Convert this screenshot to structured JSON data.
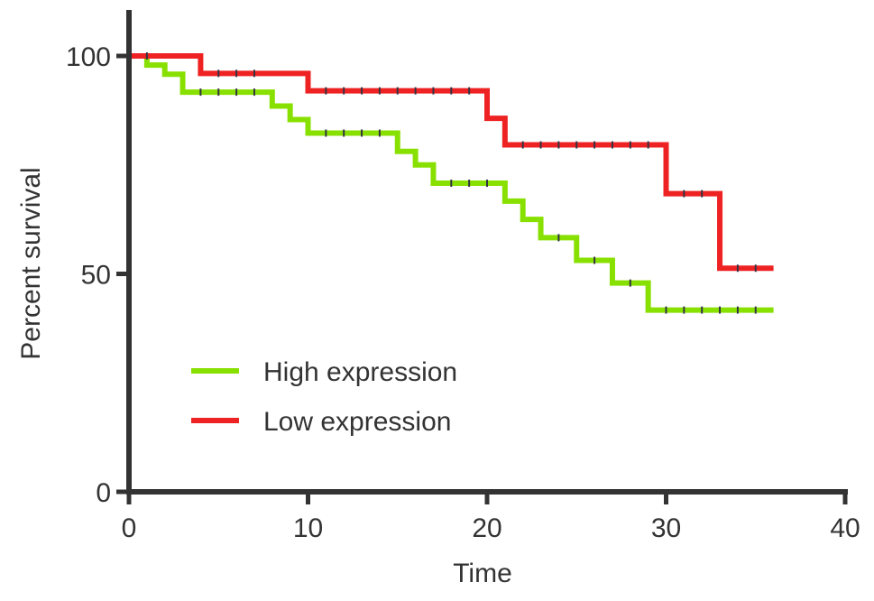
{
  "chart_data": {
    "type": "line",
    "step": true,
    "title": "",
    "xlabel": "Time",
    "ylabel": "Percent survival",
    "xlim": [
      0,
      40
    ],
    "ylim": [
      0,
      100
    ],
    "xticks": [
      0,
      10,
      20,
      30,
      40
    ],
    "yticks": [
      0,
      50,
      100
    ],
    "grid": false,
    "legend_position": "lower-left",
    "series": [
      {
        "name": "High expression",
        "color": "#88e000",
        "x": [
          0,
          1,
          2,
          3,
          8,
          9,
          10,
          15,
          16,
          17,
          21,
          22,
          23,
          25,
          27,
          29,
          36
        ],
        "y": [
          100,
          97.9,
          95.8,
          91.7,
          88.5,
          85.4,
          82.3,
          78.1,
          75,
          70.8,
          66.7,
          62.5,
          58.3,
          53.1,
          47.9,
          41.7,
          41.7
        ],
        "censored": {
          "x": [
            4,
            5,
            6,
            7,
            11,
            12,
            13,
            14,
            18,
            19,
            20,
            24,
            26,
            28,
            30,
            31,
            32,
            33,
            34,
            35
          ],
          "y": [
            91.7,
            91.7,
            91.7,
            91.7,
            82.3,
            82.3,
            82.3,
            82.3,
            70.8,
            70.8,
            70.8,
            58.3,
            53.1,
            47.9,
            41.7,
            41.7,
            41.7,
            41.7,
            41.7,
            41.7
          ]
        }
      },
      {
        "name": "Low expression",
        "color": "#ee2222",
        "x": [
          0,
          4,
          10,
          20,
          21,
          30,
          33,
          36
        ],
        "y": [
          100,
          96,
          92,
          85.7,
          79.6,
          68.4,
          51.3,
          51.3
        ],
        "censored": {
          "x": [
            1,
            5,
            6,
            7,
            11,
            12,
            13,
            14,
            15,
            16,
            17,
            18,
            19,
            22,
            23,
            24,
            25,
            26,
            27,
            28,
            29,
            31,
            32,
            34,
            35
          ],
          "y": [
            100,
            96,
            96,
            96,
            92,
            92,
            92,
            92,
            92,
            92,
            92,
            92,
            92,
            79.6,
            79.6,
            79.6,
            79.6,
            79.6,
            79.6,
            79.6,
            79.6,
            68.4,
            68.4,
            51.3,
            51.3
          ]
        }
      }
    ]
  }
}
